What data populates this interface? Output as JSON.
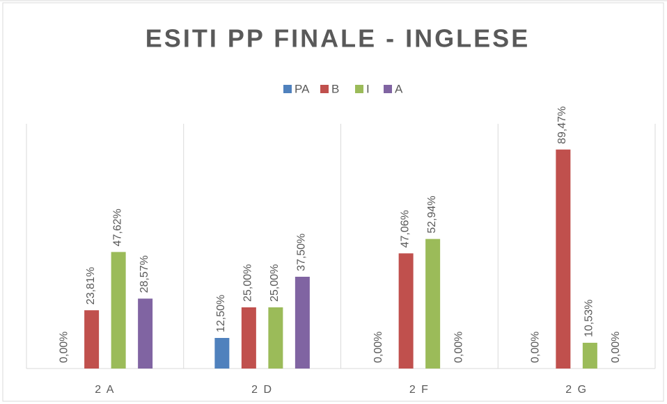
{
  "chart_data": {
    "type": "bar",
    "title": "ESITI PP FINALE - INGLESE",
    "categories": [
      "2 A",
      "2 D",
      "2 F",
      "2 G"
    ],
    "series": [
      {
        "name": "PA",
        "color": "#4f81bd",
        "values": [
          0,
          12.5,
          0,
          0
        ],
        "value_labels": [
          "0,00%",
          "12,50%",
          "0,00%",
          "0,00%"
        ]
      },
      {
        "name": "B",
        "color": "#c0504d",
        "values": [
          23.81,
          25,
          47.06,
          89.47
        ],
        "value_labels": [
          "23,81%",
          "25,00%",
          "47,06%",
          "89,47%"
        ]
      },
      {
        "name": "I",
        "color": "#9bbb59",
        "values": [
          47.62,
          25,
          52.94,
          10.53
        ],
        "value_labels": [
          "47,62%",
          "25,00%",
          "52,94%",
          "10,53%"
        ]
      },
      {
        "name": "A",
        "color": "#8064a2",
        "values": [
          28.57,
          37.5,
          0,
          0
        ],
        "value_labels": [
          "28,57%",
          "37,50%",
          "0,00%",
          "0,00%"
        ]
      }
    ],
    "ylim": [
      0,
      100
    ],
    "legend": "top"
  }
}
